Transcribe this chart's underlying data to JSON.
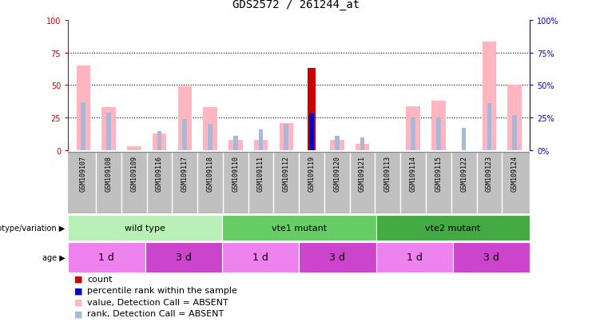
{
  "title": "GDS2572 / 261244_at",
  "samples": [
    "GSM109107",
    "GSM109108",
    "GSM109109",
    "GSM109116",
    "GSM109117",
    "GSM109118",
    "GSM109110",
    "GSM109111",
    "GSM109112",
    "GSM109119",
    "GSM109120",
    "GSM109121",
    "GSM109113",
    "GSM109114",
    "GSM109115",
    "GSM109122",
    "GSM109123",
    "GSM109124"
  ],
  "value_absent": [
    65,
    33,
    3,
    13,
    49,
    33,
    8,
    8,
    21,
    0,
    8,
    5,
    0,
    34,
    38,
    0,
    83,
    50
  ],
  "rank_absent": [
    37,
    29,
    0,
    15,
    24,
    20,
    11,
    16,
    20,
    0,
    11,
    10,
    0,
    25,
    25,
    17,
    36,
    27
  ],
  "count_value": [
    0,
    0,
    0,
    0,
    0,
    0,
    0,
    0,
    0,
    63,
    0,
    0,
    0,
    0,
    0,
    0,
    0,
    0
  ],
  "count_rank": [
    0,
    0,
    0,
    0,
    0,
    0,
    0,
    0,
    0,
    28,
    0,
    0,
    0,
    0,
    0,
    0,
    0,
    0
  ],
  "genotype_groups": [
    {
      "label": "wild type",
      "start": 0,
      "end": 6,
      "color": "#b8f0b8"
    },
    {
      "label": "vte1 mutant",
      "start": 6,
      "end": 12,
      "color": "#66cc66"
    },
    {
      "label": "vte2 mutant",
      "start": 12,
      "end": 18,
      "color": "#44aa44"
    }
  ],
  "age_groups": [
    {
      "label": "1 d",
      "start": 0,
      "end": 3,
      "color": "#ee82ee"
    },
    {
      "label": "3 d",
      "start": 3,
      "end": 6,
      "color": "#cc44cc"
    },
    {
      "label": "1 d",
      "start": 6,
      "end": 9,
      "color": "#ee82ee"
    },
    {
      "label": "3 d",
      "start": 9,
      "end": 12,
      "color": "#cc44cc"
    },
    {
      "label": "1 d",
      "start": 12,
      "end": 15,
      "color": "#ee82ee"
    },
    {
      "label": "3 d",
      "start": 15,
      "end": 18,
      "color": "#cc44cc"
    }
  ],
  "ylim": [
    0,
    100
  ],
  "yticks": [
    0,
    25,
    50,
    75,
    100
  ],
  "color_value_absent": "#FFB6C1",
  "color_rank_absent": "#aab8d8",
  "color_count": "#CC0000",
  "color_count_rank": "#0000CC",
  "title_fontsize": 10,
  "tick_fontsize": 7,
  "legend_fontsize": 8,
  "left_axis_color": "#CC0000",
  "right_axis_color": "#0000CC",
  "sample_bg_color": "#c0c0c0"
}
